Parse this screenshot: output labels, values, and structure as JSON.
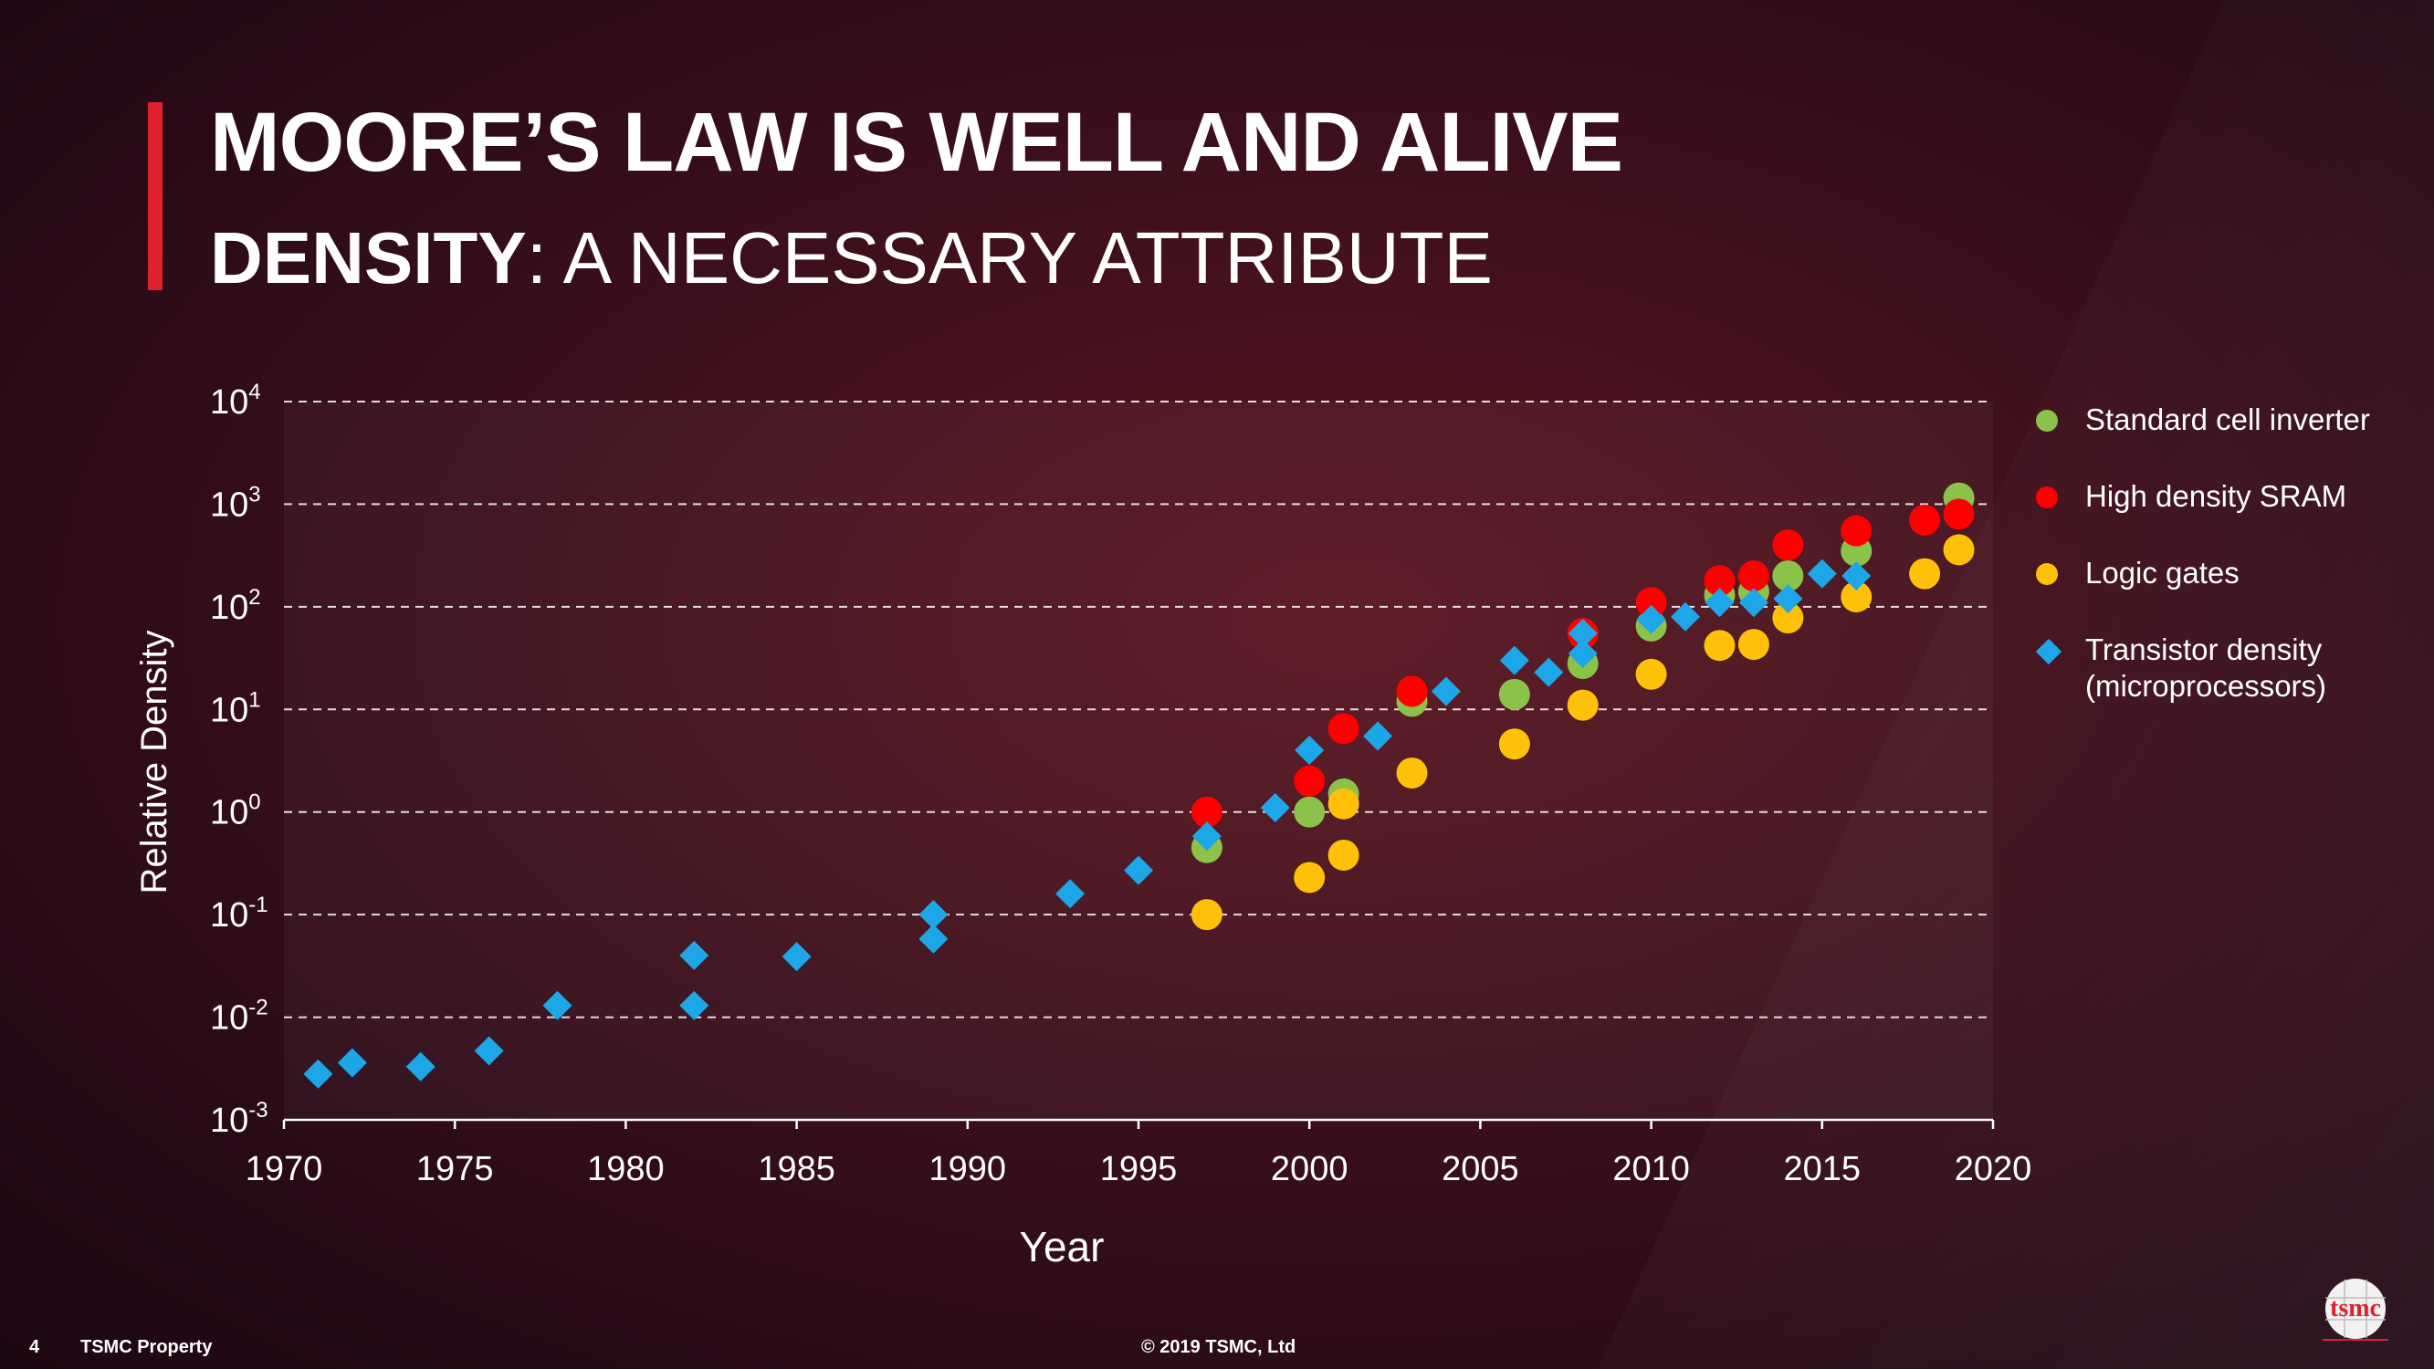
{
  "slide": {
    "title_bold": "MOORE’S LAW",
    "title_rest": " IS WELL AND ALIVE",
    "subtitle_bold": "DENSITY",
    "subtitle_rest": ": A NECESSARY ATTRIBUTE",
    "page_number": "4",
    "property_label": "TSMC Property",
    "copyright": "© 2019 TSMC, Ltd",
    "logo_text": "tsmc"
  },
  "colors": {
    "accent": "#e0202d",
    "standard_cell": "#8bc34a",
    "sram": "#ff0000",
    "logic": "#ffc107",
    "transistor": "#1ea7e8"
  },
  "chart_data": {
    "type": "scatter",
    "xlabel": "Year",
    "ylabel": "Relative Density",
    "xlim": [
      1970,
      2020
    ],
    "ylim": [
      -3,
      4
    ],
    "y_scale": "log",
    "x_ticks": [
      "1970",
      "1975",
      "1980",
      "1985",
      "1990",
      "1995",
      "2000",
      "2005",
      "2010",
      "2015",
      "2020"
    ],
    "y_tick_exponents": [
      "-3",
      "-2",
      "-1",
      "0",
      "1",
      "2",
      "3",
      "4"
    ],
    "y_tick_base": "10",
    "grid": "horizontal dashed",
    "legend_position": "right",
    "series": [
      {
        "name": "Standard cell inverter",
        "marker": "circle",
        "points": [
          [
            1997,
            0.45
          ],
          [
            2000,
            1.0
          ],
          [
            2001,
            1.5
          ],
          [
            2003,
            12
          ],
          [
            2006,
            14
          ],
          [
            2008,
            28
          ],
          [
            2010,
            65
          ],
          [
            2012,
            130
          ],
          [
            2013,
            140
          ],
          [
            2014,
            200
          ],
          [
            2016,
            350
          ],
          [
            2019,
            1150
          ]
        ]
      },
      {
        "name": "High density SRAM",
        "marker": "circle",
        "points": [
          [
            1997,
            1.0
          ],
          [
            2000,
            2.0
          ],
          [
            2001,
            6.5
          ],
          [
            2003,
            15
          ],
          [
            2008,
            55
          ],
          [
            2010,
            110
          ],
          [
            2012,
            180
          ],
          [
            2013,
            200
          ],
          [
            2014,
            400
          ],
          [
            2016,
            550
          ],
          [
            2018,
            700
          ],
          [
            2019,
            800
          ]
        ]
      },
      {
        "name": "Logic gates",
        "marker": "circle",
        "points": [
          [
            1997,
            0.1
          ],
          [
            2000,
            0.23
          ],
          [
            2001,
            0.38
          ],
          [
            2001,
            1.2
          ],
          [
            2003,
            2.4
          ],
          [
            2006,
            4.6
          ],
          [
            2008,
            11
          ],
          [
            2010,
            22
          ],
          [
            2012,
            42
          ],
          [
            2013,
            43
          ],
          [
            2014,
            78
          ],
          [
            2016,
            125
          ],
          [
            2018,
            210
          ],
          [
            2019,
            360
          ]
        ]
      },
      {
        "name": "Transistor density",
        "name_line2": "(microprocessors)",
        "marker": "diamond",
        "points": [
          [
            1971,
            0.0028
          ],
          [
            1972,
            0.0036
          ],
          [
            1974,
            0.0033
          ],
          [
            1976,
            0.0047
          ],
          [
            1978,
            0.013
          ],
          [
            1982,
            0.04
          ],
          [
            1982,
            0.013
          ],
          [
            1985,
            0.039
          ],
          [
            1989,
            0.1
          ],
          [
            1989,
            0.058
          ],
          [
            1993,
            0.16
          ],
          [
            1995,
            0.27
          ],
          [
            1997,
            0.58
          ],
          [
            1999,
            1.1
          ],
          [
            2000,
            4.0
          ],
          [
            2002,
            5.5
          ],
          [
            2004,
            15
          ],
          [
            2006,
            30
          ],
          [
            2007,
            23
          ],
          [
            2008,
            35
          ],
          [
            2008,
            55
          ],
          [
            2010,
            75
          ],
          [
            2011,
            80
          ],
          [
            2012,
            110
          ],
          [
            2013,
            110
          ],
          [
            2014,
            120
          ],
          [
            2015,
            210
          ],
          [
            2016,
            200
          ]
        ]
      }
    ]
  }
}
